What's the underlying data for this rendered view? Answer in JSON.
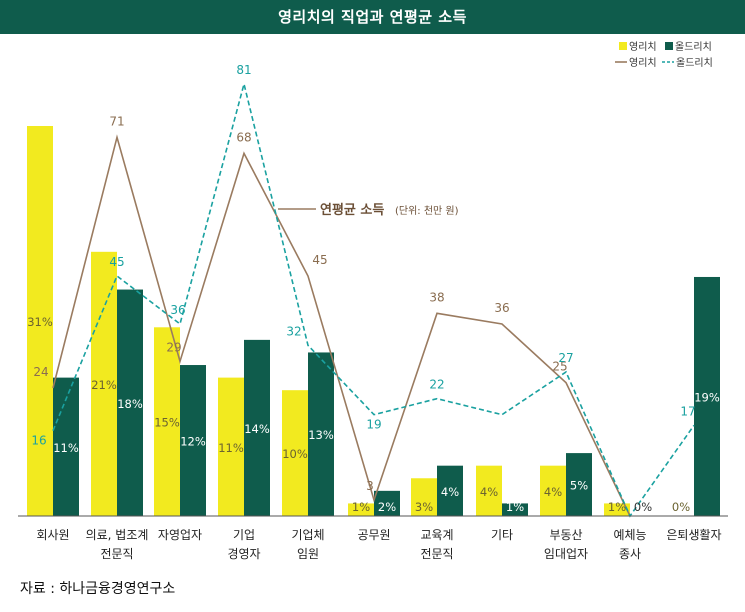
{
  "header": {
    "title": "영리치의 직업과 연평균 소득"
  },
  "source": "자료 : 하나금융경영연구소",
  "colors": {
    "header_bg": "#0f5c4c",
    "young_bar": "#f2ea1f",
    "old_bar": "#0f5c4c",
    "young_line": "#9a7b60",
    "old_line": "#1aa1a0",
    "young_label": "#8a6d50",
    "old_label": "#1aa1a0",
    "bar_label_on_yellow": "#6b6330",
    "bar_label_on_green": "#ffffff"
  },
  "chart_data": {
    "type": "bar",
    "categories": [
      [
        "회사원"
      ],
      [
        "의료, 법조계",
        "전문직"
      ],
      [
        "자영업자"
      ],
      [
        "기업",
        "경영자"
      ],
      [
        "기업체",
        "임원"
      ],
      [
        "공무원"
      ],
      [
        "교육계",
        "전문직"
      ],
      [
        "기타"
      ],
      [
        "부동산",
        "임대업자"
      ],
      [
        "예체능",
        "종사"
      ],
      [
        "은퇴생활자"
      ]
    ],
    "bar_series": [
      {
        "name": "영리치",
        "values": [
          31,
          21,
          15,
          11,
          10,
          1,
          3,
          4,
          4,
          1,
          0
        ]
      },
      {
        "name": "올드리치",
        "values": [
          11,
          18,
          12,
          14,
          13,
          2,
          4,
          1,
          5,
          0,
          19
        ]
      }
    ],
    "line_series": [
      {
        "name": "영리치",
        "values": [
          24,
          71,
          29,
          68,
          45,
          3,
          38,
          36,
          25,
          0,
          null
        ]
      },
      {
        "name": "올드리치",
        "values": [
          16,
          45,
          36,
          81,
          32,
          19,
          22,
          19,
          27,
          0,
          17
        ]
      }
    ],
    "line_labels": {
      "young": [
        "24",
        "71",
        "29",
        "68",
        "45",
        "3",
        "38",
        "36",
        "25",
        "",
        ""
      ],
      "old": [
        "16",
        "45",
        "36",
        "81",
        "32",
        "19",
        "22",
        "",
        "27",
        "",
        "17"
      ]
    },
    "bar_labels": {
      "young": [
        "31%",
        "21%",
        "15%",
        "11%",
        "10%",
        "1%",
        "3%",
        "4%",
        "4%",
        "1%",
        "0%"
      ],
      "old": [
        "11%",
        "18%",
        "12%",
        "14%",
        "13%",
        "2%",
        "4%",
        "1%",
        "5%",
        "0%",
        "19%"
      ]
    },
    "annotation": {
      "title": "연평균 소득",
      "unit": "(단위: 천만 원)"
    },
    "legend": {
      "position": "top-right",
      "items": [
        "영리치",
        "올드리치",
        "영리치",
        "올드리치"
      ]
    },
    "bar_ylim": [
      0,
      31
    ],
    "line_ylim": [
      0,
      81
    ]
  }
}
